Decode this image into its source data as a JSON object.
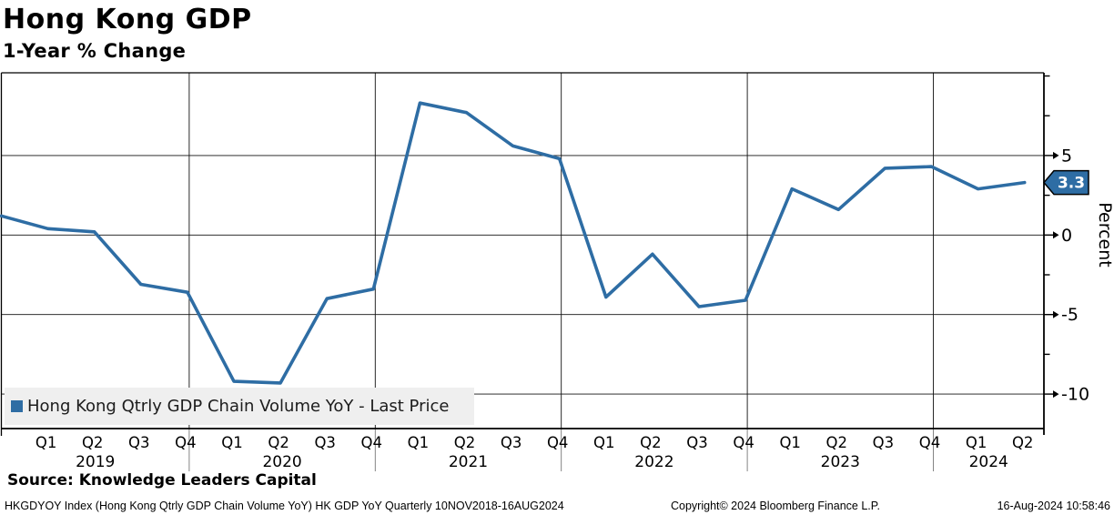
{
  "header": {
    "title": "Hong Kong GDP",
    "subtitle": "1-Year % Change"
  },
  "legend": {
    "marker_color": "#2e6da4",
    "label": "Hong Kong Qtrly GDP Chain Volume YoY - Last Price"
  },
  "chart_data": {
    "type": "line",
    "title": "Hong Kong GDP",
    "subtitle": "1-Year % Change",
    "series_name": "Hong Kong Qtrly GDP Chain Volume YoY - Last Price",
    "line_color": "#2e6da4",
    "x": [
      "2018 Q4",
      "2019 Q1",
      "2019 Q2",
      "2019 Q3",
      "2019 Q4",
      "2020 Q1",
      "2020 Q2",
      "2020 Q3",
      "2020 Q4",
      "2021 Q1",
      "2021 Q2",
      "2021 Q3",
      "2021 Q4",
      "2022 Q1",
      "2022 Q2",
      "2022 Q3",
      "2022 Q4",
      "2023 Q1",
      "2023 Q2",
      "2023 Q3",
      "2023 Q4",
      "2024 Q1",
      "2024 Q2"
    ],
    "values": [
      1.2,
      0.4,
      0.2,
      -3.1,
      -3.6,
      -9.2,
      -9.3,
      -4.0,
      -3.4,
      8.3,
      7.7,
      5.6,
      4.8,
      -3.9,
      -1.2,
      -4.5,
      -4.1,
      2.9,
      1.6,
      4.2,
      4.3,
      2.9,
      3.3
    ],
    "last_price": "3.3",
    "ylabel": "Percent",
    "ylim": [
      -12.2,
      10.3
    ],
    "yticks_major": [
      5,
      0,
      -5,
      -10
    ],
    "yticks_minor": [
      10,
      7.5,
      2.5,
      -2.5,
      -7.5
    ],
    "grid": "horizontal major gridlines + vertical year-boundary lines",
    "legend_position": "bottom-left inside plot",
    "xaxis": {
      "quarters": [
        "Q1",
        "Q2",
        "Q3",
        "Q4",
        "Q1",
        "Q2",
        "Q3",
        "Q4",
        "Q1",
        "Q2",
        "Q3",
        "Q4",
        "Q1",
        "Q2",
        "Q3",
        "Q4",
        "Q1",
        "Q2",
        "Q3",
        "Q4",
        "Q1",
        "Q2"
      ],
      "years": [
        "2019",
        "2020",
        "2021",
        "2022",
        "2023",
        "2024"
      ]
    }
  },
  "footer": {
    "source": "Source: Knowledge Leaders Capital",
    "ticker_line": "HKGDYOY Index (Hong Kong Qtrly GDP Chain Volume YoY) HK GDP YoY  Quarterly 10NOV2018-16AUG2024",
    "copyright": "Copyright© 2024 Bloomberg Finance L.P.",
    "timestamp": "16-Aug-2024 10:58:46"
  }
}
